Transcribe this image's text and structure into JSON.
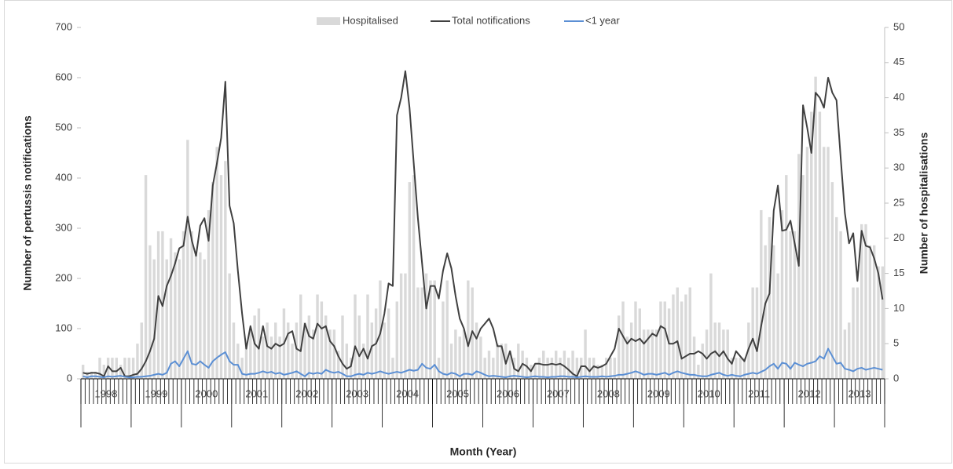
{
  "chart_data": {
    "type": "combo",
    "x_label": "Month (Year)",
    "y_label": "Number of pertussis notifications",
    "y2_label": "Number of hospitalisations",
    "categories": [
      "1998",
      "1999",
      "2000",
      "2001",
      "2002",
      "2003",
      "2004",
      "2005",
      "2006",
      "2007",
      "2008",
      "2009",
      "2010",
      "2011",
      "2012",
      "2013"
    ],
    "ylim": [
      0,
      700
    ],
    "yticks": [
      0,
      100,
      200,
      300,
      400,
      500,
      600,
      700
    ],
    "y2lim": [
      0,
      50
    ],
    "y2ticks": [
      0,
      5,
      10,
      15,
      20,
      25,
      30,
      35,
      40,
      45,
      50
    ],
    "legend": "top",
    "series": [
      {
        "name": "Hospitalised",
        "type": "bar",
        "axis": "y2",
        "color": "#d9d9d9",
        "values": [
          [
            2,
            1,
            1,
            1,
            3,
            2,
            3,
            3,
            3,
            2,
            3,
            3
          ],
          [
            3,
            5,
            8,
            29,
            19,
            17,
            21,
            21,
            17,
            20,
            18,
            17
          ],
          [
            21,
            34,
            21,
            18,
            18,
            17,
            24,
            28,
            33,
            29,
            31,
            15
          ],
          [
            8,
            5,
            3,
            5,
            7,
            9,
            10,
            6,
            8,
            6,
            8,
            6
          ],
          [
            10,
            8,
            5,
            8,
            12,
            8,
            9,
            7,
            12,
            11,
            9,
            7
          ],
          [
            7,
            4,
            9,
            5,
            3,
            12,
            9,
            5,
            12,
            8,
            10,
            14
          ],
          [
            8,
            10,
            3,
            11,
            15,
            15,
            28,
            29,
            13,
            13,
            15,
            14
          ],
          [
            14,
            3,
            11,
            14,
            5,
            7,
            6,
            7,
            14,
            13,
            8,
            6
          ],
          [
            3,
            4,
            3,
            5,
            5,
            5,
            4,
            3,
            5,
            4,
            3,
            2
          ],
          [
            2,
            3,
            4,
            3,
            3,
            4,
            3,
            4,
            3,
            4,
            3,
            3
          ],
          [
            7,
            3,
            3,
            2,
            2,
            3,
            3,
            3,
            9,
            11,
            6,
            8
          ],
          [
            11,
            10,
            7,
            7,
            7,
            7,
            11,
            11,
            10,
            12,
            13,
            11
          ],
          [
            12,
            13,
            6,
            2,
            5,
            7,
            15,
            8,
            8,
            7,
            7,
            3
          ],
          [
            3,
            3,
            3,
            8,
            13,
            13,
            24,
            19,
            23,
            19,
            15,
            24
          ],
          [
            29,
            21,
            21,
            32,
            29,
            33,
            38,
            43,
            38,
            33,
            33,
            28
          ],
          [
            23,
            21,
            7,
            8,
            13,
            13,
            22,
            22,
            19,
            19,
            16,
            16
          ]
        ]
      },
      {
        "name": "Total notifications",
        "type": "line",
        "color": "#404040",
        "values": [
          [
            12,
            10,
            12,
            12,
            10,
            5,
            25,
            15,
            15,
            22,
            5,
            5
          ],
          [
            8,
            10,
            20,
            35,
            55,
            80,
            165,
            145,
            185,
            205,
            230,
            260
          ],
          [
            265,
            323,
            275,
            245,
            305,
            320,
            275,
            385,
            430,
            480,
            592,
            345
          ],
          [
            310,
            215,
            130,
            60,
            105,
            70,
            60,
            105,
            65,
            60,
            70,
            65
          ],
          [
            70,
            90,
            95,
            60,
            55,
            110,
            85,
            80,
            110,
            100,
            105,
            75
          ],
          [
            65,
            45,
            30,
            20,
            25,
            65,
            45,
            60,
            40,
            65,
            70,
            90
          ],
          [
            130,
            190,
            185,
            525,
            560,
            613,
            540,
            430,
            320,
            230,
            140,
            185
          ],
          [
            185,
            160,
            215,
            250,
            220,
            165,
            120,
            100,
            65,
            95,
            80,
            100
          ],
          [
            110,
            120,
            100,
            65,
            65,
            30,
            55,
            20,
            15,
            30,
            25,
            15
          ],
          [
            30,
            30,
            28,
            28,
            30,
            28,
            30,
            25,
            18,
            10,
            5,
            25
          ],
          [
            25,
            15,
            25,
            22,
            25,
            30,
            45,
            60,
            100,
            85,
            70,
            80
          ],
          [
            75,
            80,
            70,
            80,
            90,
            85,
            105,
            100,
            70,
            70,
            75,
            40
          ],
          [
            45,
            50,
            50,
            55,
            50,
            40,
            50,
            55,
            45,
            55,
            40,
            30
          ],
          [
            55,
            45,
            35,
            60,
            80,
            55,
            105,
            150,
            170,
            335,
            385,
            295
          ],
          [
            297,
            315,
            270,
            225,
            545,
            500,
            450,
            570,
            560,
            540,
            600,
            570
          ],
          [
            555,
            440,
            330,
            270,
            290,
            195,
            295,
            265,
            262,
            240,
            210,
            158
          ]
        ]
      },
      {
        "name": "<1 year",
        "type": "line",
        "color": "#5b8fd4",
        "values": [
          [
            5,
            3,
            5,
            5,
            4,
            3,
            5,
            4,
            5,
            6,
            4,
            3
          ],
          [
            3,
            4,
            4,
            5,
            6,
            8,
            10,
            8,
            12,
            30,
            35,
            25
          ],
          [
            40,
            55,
            30,
            28,
            35,
            28,
            22,
            35,
            42,
            48,
            53,
            35
          ],
          [
            28,
            28,
            10,
            8,
            10,
            10,
            12,
            15,
            12,
            14,
            10,
            12
          ],
          [
            8,
            10,
            12,
            15,
            10,
            5,
            12,
            10,
            12,
            10,
            18,
            14
          ],
          [
            12,
            14,
            10,
            5,
            5,
            8,
            10,
            8,
            12,
            10,
            12,
            15
          ],
          [
            12,
            10,
            12,
            14,
            12,
            15,
            18,
            16,
            18,
            30,
            22,
            20
          ],
          [
            28,
            15,
            10,
            8,
            12,
            10,
            5,
            10,
            10,
            8,
            15,
            12
          ],
          [
            8,
            5,
            6,
            5,
            4,
            3,
            5,
            6,
            5,
            4,
            3,
            4
          ],
          [
            5,
            4,
            4,
            3,
            4,
            4,
            5,
            5,
            4,
            4,
            3,
            4
          ],
          [
            5,
            4,
            4,
            4,
            5,
            4,
            5,
            6,
            8,
            8,
            10,
            12
          ],
          [
            15,
            12,
            8,
            10,
            10,
            8,
            10,
            12,
            8,
            12,
            15,
            12
          ],
          [
            10,
            8,
            8,
            6,
            5,
            5,
            8,
            10,
            12,
            8,
            6,
            8
          ],
          [
            6,
            5,
            8,
            10,
            12,
            10,
            14,
            18,
            25,
            30,
            20,
            32
          ],
          [
            30,
            20,
            32,
            28,
            25,
            30,
            32,
            35,
            45,
            40,
            60,
            45
          ],
          [
            30,
            32,
            20,
            18,
            15,
            20,
            22,
            18,
            20,
            22,
            20,
            18
          ]
        ]
      }
    ]
  }
}
